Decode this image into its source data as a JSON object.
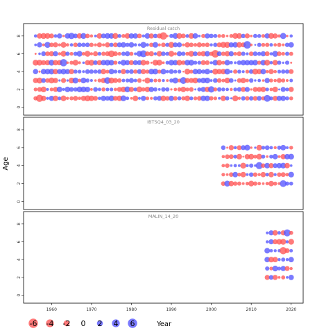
{
  "chart_data": {
    "type": "scatter",
    "xlabel": "Year",
    "ylabel": "Age",
    "xlim": [
      1953,
      2023
    ],
    "ylim": [
      -0.5,
      9
    ],
    "x_ticks": [
      1960,
      1970,
      1980,
      1990,
      2000,
      2010,
      2020
    ],
    "y_ticks": [
      0,
      2,
      4,
      6,
      8
    ],
    "colors": {
      "positive": "#5555ff",
      "negative": "#ff5555"
    },
    "panels": [
      {
        "title": "Residual catch",
        "years": [
          1956,
          2020
        ],
        "ages": [
          1,
          8
        ]
      },
      {
        "title": "IBTSQ4_03_20",
        "years": [
          2003,
          2020
        ],
        "ages": [
          2,
          6
        ]
      },
      {
        "title": "MALIN_14_20",
        "years": [
          2014,
          2020
        ],
        "ages": [
          2,
          7
        ]
      }
    ],
    "legend": {
      "values": [
        -6,
        -4,
        -2,
        0,
        2,
        4,
        6
      ],
      "labels": [
        "-6",
        "-4",
        "-2",
        "0",
        "2",
        "4",
        "6"
      ]
    }
  }
}
